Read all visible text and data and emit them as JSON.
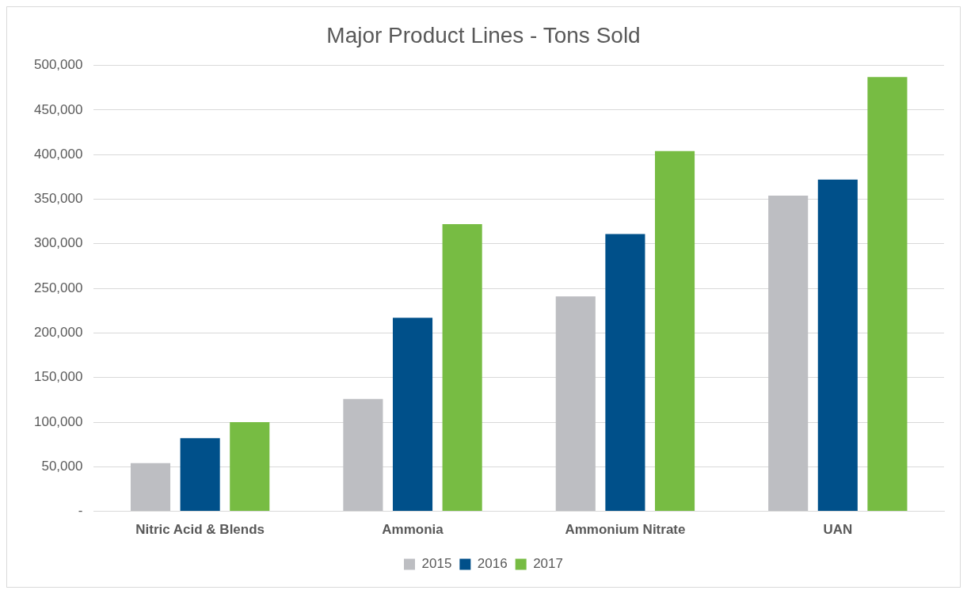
{
  "chart_data": {
    "type": "bar",
    "title": "Major Product Lines - Tons Sold",
    "categories": [
      "Nitric Acid & Blends",
      "Ammonia",
      "Ammonium Nitrate",
      "UAN"
    ],
    "series": [
      {
        "name": "2015",
        "color": "#bdbec2",
        "values": [
          54000,
          126000,
          241000,
          354000
        ]
      },
      {
        "name": "2016",
        "color": "#00508a",
        "values": [
          82000,
          217000,
          311000,
          372000
        ]
      },
      {
        "name": "2017",
        "color": "#77bc43",
        "values": [
          100000,
          322000,
          404000,
          487000
        ]
      }
    ],
    "ylim": [
      0,
      500000
    ],
    "yticks": [
      {
        "value": 0,
        "label": "-"
      },
      {
        "value": 50000,
        "label": "50,000"
      },
      {
        "value": 100000,
        "label": "100,000"
      },
      {
        "value": 150000,
        "label": "150,000"
      },
      {
        "value": 200000,
        "label": "200,000"
      },
      {
        "value": 250000,
        "label": "250,000"
      },
      {
        "value": 300000,
        "label": "300,000"
      },
      {
        "value": 350000,
        "label": "350,000"
      },
      {
        "value": 400000,
        "label": "400,000"
      },
      {
        "value": 450000,
        "label": "450,000"
      },
      {
        "value": 500000,
        "label": "500,000"
      }
    ],
    "grid": "y",
    "legend": "bottom"
  }
}
